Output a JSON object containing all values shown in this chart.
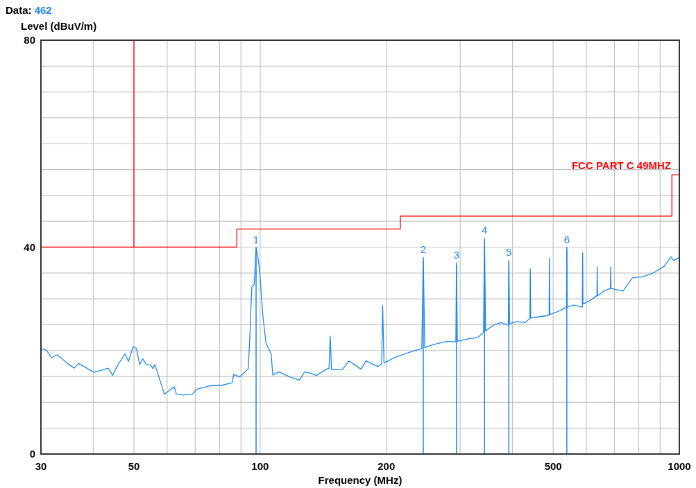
{
  "chart_data": {
    "type": "line",
    "title": "Data: 462",
    "xlabel": "Frequency (MHz)",
    "ylabel": "Level (dBuV/m)",
    "log": "x",
    "grid": true,
    "legend": false,
    "marker": "none",
    "line_style": "solid",
    "xlim": [
      30,
      1000
    ],
    "ylim": [
      0,
      80
    ],
    "xticks": [
      30,
      {
        "value": 40,
        "label": null
      },
      50,
      {
        "value": 60,
        "label": null
      },
      {
        "value": 70,
        "label": null
      },
      {
        "value": 80,
        "label": null
      },
      {
        "value": 90,
        "label": null
      },
      100,
      200,
      {
        "value": 300,
        "label": null
      },
      {
        "value": 400,
        "label": null
      },
      500,
      {
        "value": 600,
        "label": null
      },
      {
        "value": 700,
        "label": null
      },
      {
        "value": 800,
        "label": null
      },
      {
        "value": 900,
        "label": null
      },
      1000
    ],
    "yticks": [
      0,
      {
        "value": 5,
        "label": null
      },
      {
        "value": 10,
        "label": null
      },
      {
        "value": 15,
        "label": null
      },
      {
        "value": 20,
        "label": null
      },
      {
        "value": 25,
        "label": null
      },
      {
        "value": 30,
        "label": null
      },
      {
        "value": 35,
        "label": null
      },
      40,
      {
        "value": 45,
        "label": null
      },
      {
        "value": 50,
        "label": null
      },
      {
        "value": 55,
        "label": null
      },
      {
        "value": 60,
        "label": null
      },
      {
        "value": 65,
        "label": null
      },
      {
        "value": 70,
        "label": null
      },
      {
        "value": 75,
        "label": null
      },
      80
    ],
    "series": [
      {
        "color": "#1e88f0",
        "x": [
          30,
          30.9,
          31.8,
          32.8,
          35.0,
          36.0,
          36.9,
          40.2,
          43.4,
          44.5,
          45.6,
          47.6,
          48.5,
          49.8,
          50.7,
          51.6,
          52.5,
          53.5,
          54.8,
          55.5,
          56.1,
          59.1,
          62.4,
          63.1,
          65.4,
          69.0,
          70.5,
          76.1,
          81.1,
          85.7,
          86.5,
          89.4,
          93.7,
          94.6,
          95.5,
          96.8,
          97.8,
          98.7,
          99.7,
          101.5,
          103.3,
          106.2,
          107.2,
          110.8,
          117.8,
          124.0,
          127.7,
          132.1,
          136.5,
          143.1,
          146,
          147,
          148,
          157,
          163,
          174,
          179,
          191,
          195,
          196,
          197.5,
          210,
          228,
          243,
          245,
          247,
          260,
          279,
          293,
          294,
          295.5,
          315,
          330,
          341,
          343,
          345,
          360,
          375,
          391,
          392,
          393.5,
          410,
          428,
          440,
          441,
          442,
          460,
          489,
          490,
          491,
          515,
          538,
          539,
          540,
          560,
          587,
          588,
          589,
          610,
          636,
          637,
          638,
          660,
          685,
          686,
          687,
          734,
          773,
          820,
          871,
          920,
          955,
          969,
          1000
        ],
        "values": [
          20.4,
          20.1,
          18.6,
          19.2,
          17.3,
          16.6,
          17.5,
          15.8,
          16.6,
          15.2,
          17.0,
          19.4,
          17.9,
          20.8,
          20.4,
          17.3,
          18.4,
          17.3,
          17.2,
          16.5,
          17.3,
          11.6,
          13.0,
          11.6,
          11.4,
          11.6,
          12.5,
          13.2,
          13.3,
          13.8,
          15.4,
          14.9,
          16.5,
          23.5,
          32.2,
          32.8,
          40.0,
          38.2,
          35.5,
          26.8,
          21.4,
          19.4,
          15.3,
          15.9,
          14.9,
          14.3,
          15.9,
          15.6,
          15.2,
          16.3,
          16.6,
          22.8,
          16.3,
          16.3,
          18.0,
          16.4,
          18.0,
          16.9,
          17.5,
          28.7,
          17.6,
          18.7,
          19.7,
          20.4,
          38.0,
          20.6,
          21.2,
          21.8,
          21.7,
          37.0,
          21.8,
          22.3,
          22.5,
          23.5,
          41.8,
          23.8,
          24.9,
          25.4,
          24.9,
          37.5,
          25.2,
          25.6,
          25.4,
          26.2,
          35.8,
          26.3,
          26.5,
          26.8,
          37.9,
          27.0,
          27.6,
          28.4,
          40.0,
          28.4,
          28.8,
          28.4,
          38.9,
          29.0,
          29.6,
          30.6,
          36.2,
          30.6,
          31.5,
          32.0,
          36.2,
          32.0,
          31.5,
          34.1,
          34.3,
          35.1,
          36.3,
          38.1,
          37.4,
          38.0
        ]
      },
      {
        "name": "FCC PART C 49MHZ",
        "color": "#ff0000",
        "x": [
          30,
          50,
          50,
          50,
          88,
          88,
          216,
          216,
          960,
          960,
          1000
        ],
        "values": [
          40,
          40,
          80,
          40,
          40,
          43.5,
          43.5,
          46,
          46,
          54,
          54
        ]
      }
    ],
    "annotations": [
      {
        "text": "1",
        "x": 97.8,
        "y": 40
      },
      {
        "text": "2",
        "x": 245,
        "y": 38
      },
      {
        "text": "3",
        "x": 294,
        "y": 37
      },
      {
        "text": "4",
        "x": 343,
        "y": 41.8
      },
      {
        "text": "5",
        "x": 392,
        "y": 37.5
      },
      {
        "text": "6",
        "x": 539,
        "y": 40
      }
    ]
  }
}
